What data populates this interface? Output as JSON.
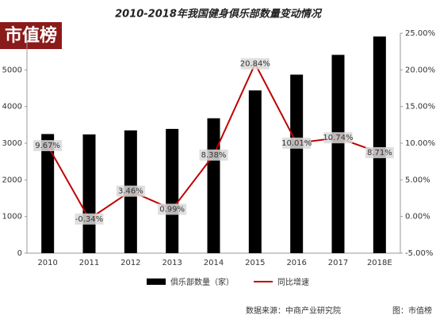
{
  "chart_data": {
    "type": "bar-line",
    "title": "2010-2018年我国健身俱乐部数量变动情况",
    "watermark": "市值榜",
    "source": "数据来源：中商产业研究院",
    "credit": "图：市值榜",
    "categories": [
      "2010",
      "2011",
      "2012",
      "2013",
      "2014",
      "2015",
      "2016",
      "2017",
      "2018E"
    ],
    "series": [
      {
        "name": "俱乐部数量（家）",
        "color": "#000000",
        "type": "bar",
        "values": [
          3250,
          3240,
          3350,
          3390,
          3680,
          4440,
          4870,
          5410,
          5910
        ]
      },
      {
        "name": "同比增速",
        "color": "#c00000",
        "type": "line",
        "axis": "y2",
        "values": [
          9.67,
          -0.34,
          3.46,
          0.99,
          8.38,
          20.84,
          10.01,
          10.74,
          8.71
        ],
        "value_labels": [
          "9.67%",
          "-0.34%",
          "3.46%",
          "0.99%",
          "8.38%",
          "20.84%",
          "10.01%",
          "10.74%",
          "8.71%"
        ]
      }
    ],
    "ylim": [
      0,
      6000
    ],
    "yticks": [
      0,
      1000,
      2000,
      3000,
      4000,
      5000
    ],
    "y2lim": [
      -5,
      25
    ],
    "y2ticks": [
      {
        "value": -5,
        "label": "-5.00%"
      },
      {
        "value": 0,
        "label": "0.00%"
      },
      {
        "value": 5,
        "label": "5.00%"
      },
      {
        "value": 10,
        "label": "10.00%"
      },
      {
        "value": 15,
        "label": "15.00%"
      },
      {
        "value": 20,
        "label": "20.00%"
      },
      {
        "value": 25,
        "label": "25.00%"
      }
    ]
  }
}
